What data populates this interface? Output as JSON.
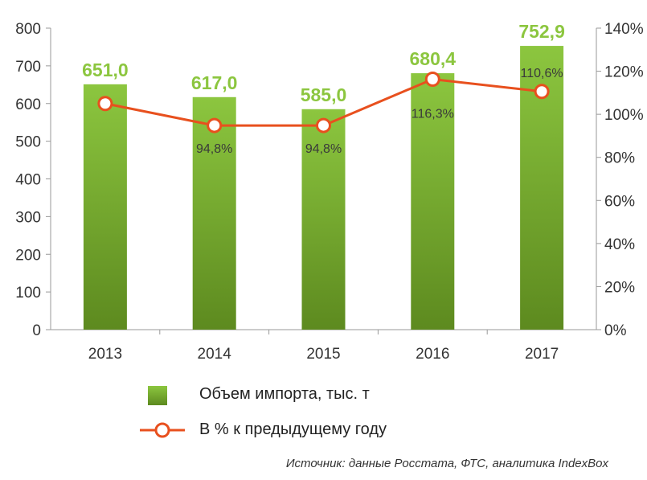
{
  "chart_data": {
    "type": "bar",
    "categories": [
      "2013",
      "2014",
      "2015",
      "2016",
      "2017"
    ],
    "series": [
      {
        "name": "Объем импорта, тыс. т",
        "type": "bar",
        "axis": "left",
        "values": [
          651.0,
          617.0,
          585.0,
          680.4,
          752.9
        ],
        "labels": [
          "651,0",
          "617,0",
          "585,0",
          "680,4",
          "752,9"
        ]
      },
      {
        "name": "В % к предыдущему году",
        "type": "line",
        "axis": "right",
        "values": [
          105.0,
          94.8,
          94.8,
          116.3,
          110.6
        ],
        "labels": [
          "",
          "94,8%",
          "94,8%",
          "116,3%",
          "110,6%"
        ]
      }
    ],
    "ylim": [
      0,
      800
    ],
    "y_ticks": [
      "0",
      "100",
      "200",
      "300",
      "400",
      "500",
      "600",
      "700",
      "800"
    ],
    "y2lim": [
      0,
      140
    ],
    "y2_ticks": [
      "0%",
      "20%",
      "40%",
      "60%",
      "80%",
      "100%",
      "120%",
      "140%"
    ],
    "grid": false,
    "legend_position": "bottom",
    "colors": {
      "bar_top": "#8cc63f",
      "bar_bottom": "#5d8a1f",
      "bar_label": "#8cc63f",
      "line": "#e8501e",
      "axis": "#999999"
    }
  },
  "legend": {
    "bar_label": "Объем импорта, тыс. т",
    "line_label": "В % к предыдущему году"
  },
  "source": "Источник: данные Росстата, ФТС, аналитика IndexBox"
}
